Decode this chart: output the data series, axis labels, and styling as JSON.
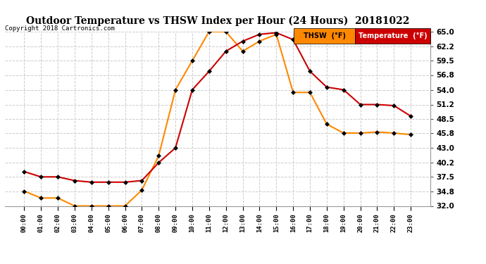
{
  "title": "Outdoor Temperature vs THSW Index per Hour (24 Hours)  20181022",
  "copyright": "Copyright 2018 Cartronics.com",
  "hours": [
    "00:00",
    "01:00",
    "02:00",
    "03:00",
    "04:00",
    "05:00",
    "06:00",
    "07:00",
    "08:00",
    "09:00",
    "10:00",
    "11:00",
    "12:00",
    "13:00",
    "14:00",
    "15:00",
    "16:00",
    "17:00",
    "18:00",
    "19:00",
    "20:00",
    "21:00",
    "22:00",
    "23:00"
  ],
  "temperature": [
    38.5,
    37.5,
    37.5,
    36.8,
    36.5,
    36.5,
    36.5,
    36.8,
    40.2,
    43.0,
    54.0,
    57.5,
    61.3,
    63.2,
    64.5,
    64.8,
    63.5,
    57.5,
    54.5,
    54.0,
    51.2,
    51.2,
    51.0,
    49.0
  ],
  "thsw": [
    34.8,
    33.5,
    33.5,
    32.0,
    32.0,
    32.0,
    32.0,
    35.0,
    41.5,
    54.0,
    59.5,
    65.0,
    65.0,
    61.3,
    63.2,
    64.5,
    53.5,
    53.5,
    47.5,
    45.8,
    45.8,
    46.0,
    45.8,
    45.5
  ],
  "temp_color": "#cc0000",
  "thsw_color": "#ff8800",
  "ylim_min": 32.0,
  "ylim_max": 65.0,
  "yticks": [
    32.0,
    34.8,
    37.5,
    40.2,
    43.0,
    45.8,
    48.5,
    51.2,
    54.0,
    56.8,
    59.5,
    62.2,
    65.0
  ],
  "background_color": "#ffffff",
  "plot_bg_color": "#ffffff",
  "grid_color": "#cccccc",
  "legend_thsw_label": "THSW  (°F)",
  "legend_temp_label": "Temperature  (°F)"
}
